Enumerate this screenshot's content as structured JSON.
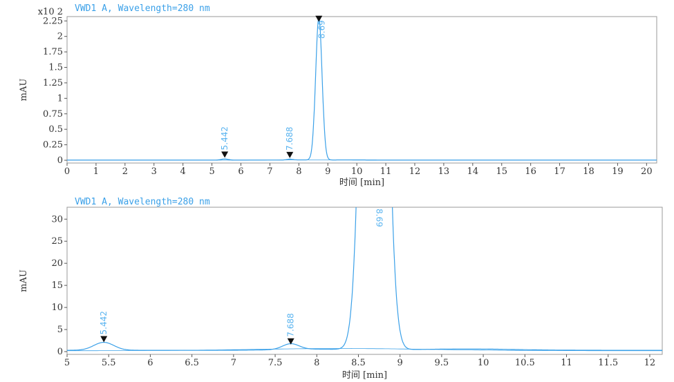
{
  "chart_data": [
    {
      "type": "line",
      "title": "VWD1 A, Wavelength=280 nm",
      "xlabel": "时间 [min]",
      "ylabel": "mAU",
      "y_multiplier_label": "x10 2",
      "xlim": [
        0,
        20.35
      ],
      "ylim": [
        0,
        2.32
      ],
      "xticks": [
        0,
        1,
        2,
        3,
        4,
        5,
        6,
        7,
        8,
        9,
        10,
        11,
        12,
        13,
        14,
        15,
        16,
        17,
        18,
        19,
        20
      ],
      "yticks": [
        0,
        0.25,
        0.5,
        0.75,
        1,
        1.25,
        1.5,
        1.75,
        2,
        2.25
      ],
      "ytick_labels": [
        "0",
        "0.25",
        "0.5",
        "0.75",
        "1",
        "1.25",
        "1.5",
        "1.75",
        "2",
        "2.25"
      ],
      "y_scale_factor": 100,
      "grid": false,
      "line_color": "#3aa0e8",
      "peaks": [
        {
          "rt": 5.442,
          "label": "5.442",
          "height_mAU": 1.8,
          "width_min": 0.12
        },
        {
          "rt": 7.688,
          "label": "7.688",
          "height_mAU": 1.3,
          "width_min": 0.1
        },
        {
          "rt": 8.69,
          "label": "8.69",
          "height_mAU": 230,
          "width_min": 0.11
        }
      ]
    },
    {
      "type": "line",
      "title": "VWD1 A, Wavelength=280 nm",
      "xlabel": "时间 [min]",
      "ylabel": "mAU",
      "xlim": [
        5,
        12.15
      ],
      "ylim": [
        0,
        32.7
      ],
      "xticks": [
        5,
        5.5,
        6,
        6.5,
        7,
        7.5,
        8,
        8.5,
        9,
        9.5,
        10,
        10.5,
        11,
        11.5,
        12
      ],
      "xtick_labels": [
        "5",
        "5.5",
        "6",
        "6.5",
        "7",
        "7.5",
        "8",
        "8.5",
        "9",
        "9.5",
        "10",
        "10.5",
        "11",
        "11.5",
        "12"
      ],
      "yticks": [
        0,
        5,
        10,
        15,
        20,
        25,
        30
      ],
      "ytick_labels": [
        "0",
        "5",
        "10",
        "15",
        "20",
        "25",
        "30"
      ],
      "grid": false,
      "line_color": "#3aa0e8",
      "peaks": [
        {
          "rt": 5.442,
          "label": "5.442",
          "height_mAU": 1.8,
          "width_min": 0.12
        },
        {
          "rt": 7.688,
          "label": "7.688",
          "height_mAU": 1.3,
          "width_min": 0.1
        },
        {
          "rt": 8.69,
          "label": "8.69",
          "height_mAU": 230,
          "width_min": 0.11
        }
      ]
    }
  ]
}
